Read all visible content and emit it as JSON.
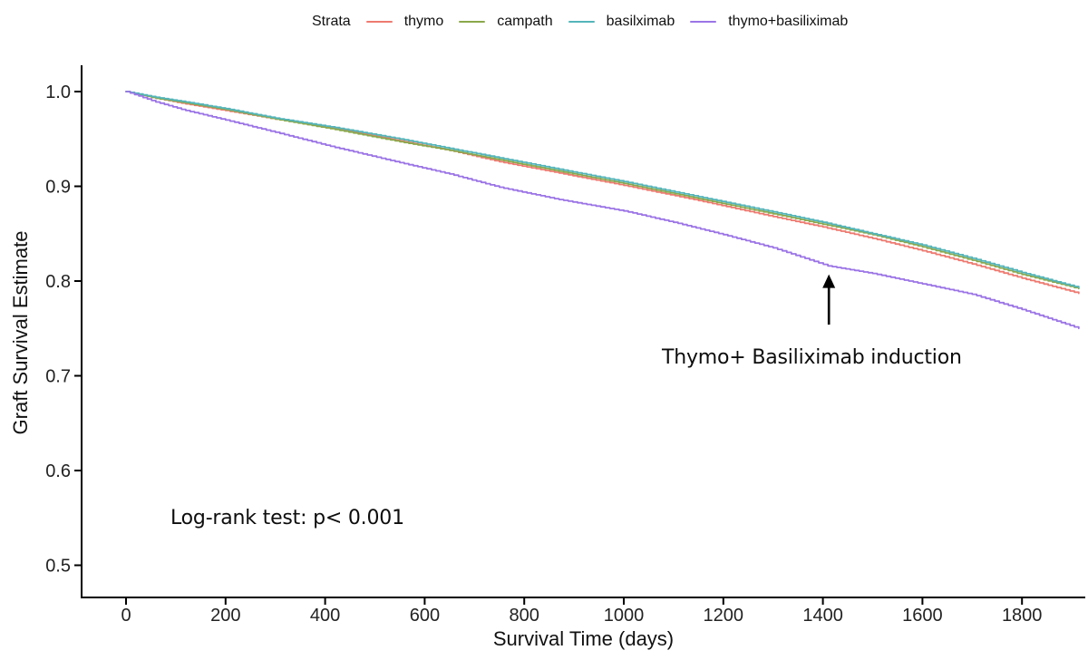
{
  "annotations": {
    "curve_label": "Thymo+ Basiliximab induction",
    "stats": "Log-rank test: p< 0.001",
    "arrow": {
      "x_day": 1412,
      "tail_value": 0.754,
      "tip_value": 0.807
    }
  },
  "chart_data": {
    "type": "line",
    "subtype": "kaplan-meier-survival",
    "title": "",
    "legend_title": "Strata",
    "legend_position": "top",
    "grid": false,
    "xlabel": "Survival Time (days)",
    "ylabel": "Graft Survival Estimate",
    "xlim": [
      -90,
      1915
    ],
    "ylim": [
      0.465,
      1.03
    ],
    "xticks": [
      0,
      200,
      400,
      600,
      800,
      1000,
      1200,
      1400,
      1600,
      1800
    ],
    "xtick_labels": [
      "0",
      "200",
      "400",
      "600",
      "800",
      "1000",
      "1200",
      "1400",
      "1600",
      "1800"
    ],
    "yticks": [
      1.0,
      0.9,
      0.8,
      0.7,
      0.6,
      0.5
    ],
    "ytick_labels": [
      "1.0",
      "0.9",
      "0.8",
      "0.7",
      "0.6",
      "0.5"
    ],
    "axis_color": "#000000",
    "series": [
      {
        "name": "thymo",
        "color": "#ee7a70",
        "points": [
          [
            0,
            1.0
          ],
          [
            60,
            0.993
          ],
          [
            120,
            0.987
          ],
          [
            200,
            0.98
          ],
          [
            300,
            0.971
          ],
          [
            420,
            0.961
          ],
          [
            550,
            0.948
          ],
          [
            650,
            0.938
          ],
          [
            750,
            0.926
          ],
          [
            870,
            0.914
          ],
          [
            1000,
            0.901
          ],
          [
            1150,
            0.885
          ],
          [
            1300,
            0.868
          ],
          [
            1400,
            0.857
          ],
          [
            1500,
            0.845
          ],
          [
            1600,
            0.832
          ],
          [
            1700,
            0.818
          ],
          [
            1800,
            0.803
          ],
          [
            1914,
            0.787
          ]
        ]
      },
      {
        "name": "campath",
        "color": "#8aa84b",
        "points": [
          [
            0,
            1.0
          ],
          [
            60,
            0.993
          ],
          [
            120,
            0.988
          ],
          [
            200,
            0.981
          ],
          [
            300,
            0.971
          ],
          [
            420,
            0.96
          ],
          [
            550,
            0.947
          ],
          [
            650,
            0.938
          ],
          [
            750,
            0.928
          ],
          [
            870,
            0.916
          ],
          [
            1000,
            0.903
          ],
          [
            1150,
            0.887
          ],
          [
            1300,
            0.871
          ],
          [
            1400,
            0.86
          ],
          [
            1500,
            0.849
          ],
          [
            1600,
            0.836
          ],
          [
            1700,
            0.822
          ],
          [
            1800,
            0.807
          ],
          [
            1914,
            0.792
          ]
        ]
      },
      {
        "name": "basilximab",
        "color": "#53b5ba",
        "points": [
          [
            0,
            1.0
          ],
          [
            60,
            0.994
          ],
          [
            120,
            0.989
          ],
          [
            200,
            0.982
          ],
          [
            300,
            0.972
          ],
          [
            420,
            0.962
          ],
          [
            550,
            0.95
          ],
          [
            650,
            0.94
          ],
          [
            750,
            0.93
          ],
          [
            870,
            0.918
          ],
          [
            1000,
            0.905
          ],
          [
            1150,
            0.889
          ],
          [
            1300,
            0.873
          ],
          [
            1400,
            0.862
          ],
          [
            1500,
            0.85
          ],
          [
            1600,
            0.838
          ],
          [
            1700,
            0.824
          ],
          [
            1800,
            0.809
          ],
          [
            1914,
            0.793
          ]
        ]
      },
      {
        "name": "thymo+basiliximab",
        "color": "#9b74e6",
        "points": [
          [
            0,
            1.0
          ],
          [
            60,
            0.989
          ],
          [
            120,
            0.98
          ],
          [
            200,
            0.97
          ],
          [
            300,
            0.957
          ],
          [
            420,
            0.941
          ],
          [
            550,
            0.925
          ],
          [
            650,
            0.913
          ],
          [
            750,
            0.899
          ],
          [
            870,
            0.886
          ],
          [
            1000,
            0.874
          ],
          [
            1100,
            0.862
          ],
          [
            1200,
            0.849
          ],
          [
            1300,
            0.835
          ],
          [
            1410,
            0.816
          ],
          [
            1500,
            0.808
          ],
          [
            1600,
            0.797
          ],
          [
            1700,
            0.786
          ],
          [
            1800,
            0.77
          ],
          [
            1914,
            0.75
          ]
        ]
      }
    ]
  }
}
